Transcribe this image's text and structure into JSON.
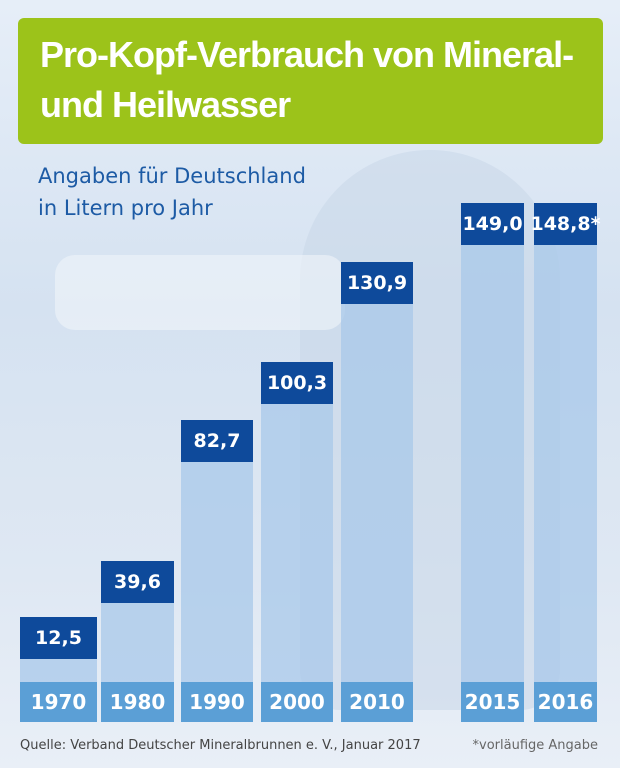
{
  "chart_data": {
    "type": "bar",
    "title": "Pro-Kopf-Verbrauch von Mineral- und Heilwasser",
    "subtitle": [
      "Angaben für Deutschland",
      "in Litern pro Jahr"
    ],
    "categories": [
      "1970",
      "1980",
      "1990",
      "2000",
      "2010",
      "2015",
      "2016"
    ],
    "values": [
      12.5,
      39.6,
      82.7,
      100.3,
      130.9,
      149.0,
      148.8
    ],
    "labels": [
      "12,5",
      "39,6",
      "82,7",
      "100,3",
      "130,9",
      "149,0",
      "148,8*"
    ],
    "source": "Quelle: Verband Deutscher Mineralbrunnen e. V., Januar 2017",
    "footnote": "*vorläufige Angabe",
    "colors": {
      "title_bg": "#9cc31a",
      "value_box": "#0e4a9b",
      "bar": "#a8c8e9",
      "year_box": "#5b9fd6",
      "text": "#1d5ba5"
    }
  }
}
